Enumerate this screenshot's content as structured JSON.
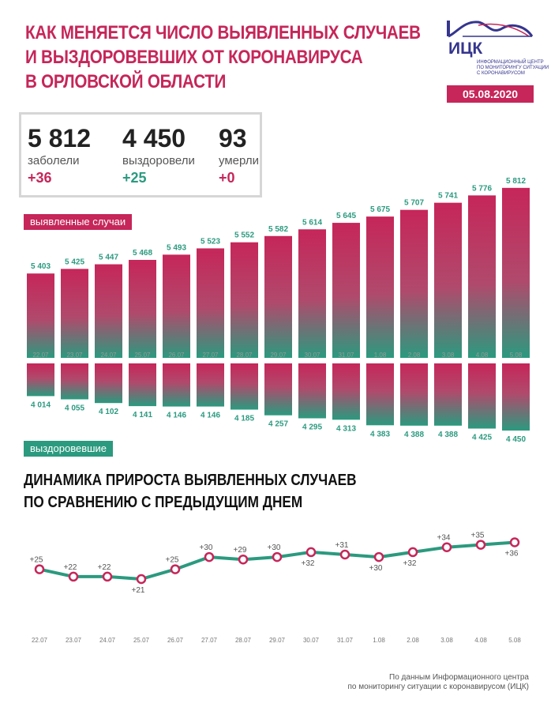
{
  "header": {
    "title_lines": [
      "КАК МЕНЯЕТСЯ ЧИСЛО ВЫЯВЛЕННЫХ СЛУЧАЕВ",
      "И ВЫЗДОРОВЕВШИХ ОТ КОРОНАВИРУСА",
      "В ОРЛОВСКОЙ ОБЛАСТИ"
    ],
    "logo_text": "ИЦК",
    "logo_sub": [
      "ИНФОРМАЦИОННЫЙ ЦЕНТР",
      "ПО МОНИТОРИНГУ СИТУАЦИИ",
      "С КОРОНАВИРУСОМ"
    ],
    "date": "05.08.2020"
  },
  "stats": [
    {
      "value": "5 812",
      "label": "заболели",
      "delta": "+36"
    },
    {
      "value": "4 450",
      "label": "выздоровели",
      "delta": "+25"
    },
    {
      "value": "93",
      "label": "умерли",
      "delta": "+0"
    }
  ],
  "labels": {
    "cases": "выявленные случаи",
    "recovered": "выздоровевшие"
  },
  "subtitle_lines": [
    "ДИНАМИКА ПРИРОСТА ВЫЯВЛЕННЫХ СЛУЧАЕВ",
    "ПО СРАВНЕНИЮ С ПРЕДЫДУЩИМ ДНЕМ"
  ],
  "source_lines": [
    "По данным Информационного центра",
    "по мониторингу ситуации с коронавирусом (ИЦК)"
  ],
  "colors": {
    "pink": "#c6265a",
    "green": "#2b9a7f"
  },
  "chart_data": [
    {
      "type": "bar",
      "categories": [
        "22.07",
        "23.07",
        "24.07",
        "25.07",
        "26.07",
        "27.07",
        "28.07",
        "29.07",
        "30.07",
        "31.07",
        "1.08",
        "2.08",
        "3.08",
        "4.08",
        "5.08"
      ],
      "series": [
        {
          "name": "выявленные случаи",
          "values": [
            5403,
            5425,
            5447,
            5468,
            5493,
            5523,
            5552,
            5582,
            5614,
            5645,
            5675,
            5707,
            5741,
            5776,
            5812
          ],
          "labels": [
            "5 403",
            "5 425",
            "5 447",
            "5 468",
            "5 493",
            "5 523",
            "5 552",
            "5 582",
            "5 614",
            "5 645",
            "5 675",
            "5 707",
            "5 741",
            "5 776",
            "5 812"
          ]
        },
        {
          "name": "выздоровевшие",
          "values": [
            4014,
            4055,
            4102,
            4141,
            4146,
            4146,
            4185,
            4257,
            4295,
            4313,
            4383,
            4388,
            4388,
            4425,
            4450
          ],
          "labels": [
            "4 014",
            "4 055",
            "4 102",
            "4 141",
            "4 146",
            "4 146",
            "4 185",
            "4 257",
            "4 295",
            "4 313",
            "4 383",
            "4 388",
            "4 388",
            "4 425",
            "4 450"
          ]
        }
      ]
    },
    {
      "type": "line",
      "title": "ДИНАМИКА ПРИРОСТА ВЫЯВЛЕННЫХ СЛУЧАЕВ ПО СРАВНЕНИЮ С ПРЕДЫДУЩИМ ДНЕМ",
      "categories": [
        "22.07",
        "23.07",
        "24.07",
        "25.07",
        "26.07",
        "27.07",
        "28.07",
        "29.07",
        "30.07",
        "31.07",
        "1.08",
        "2.08",
        "3.08",
        "4.08",
        "5.08"
      ],
      "values": [
        25,
        22,
        22,
        21,
        25,
        30,
        29,
        30,
        32,
        31,
        30,
        32,
        34,
        35,
        36
      ],
      "labels": [
        "+25",
        "+22",
        "+22",
        "+21",
        "+25",
        "+30",
        "+29",
        "+30",
        "+32",
        "+31",
        "+30",
        "+32",
        "+34",
        "+35",
        "+36"
      ]
    }
  ]
}
